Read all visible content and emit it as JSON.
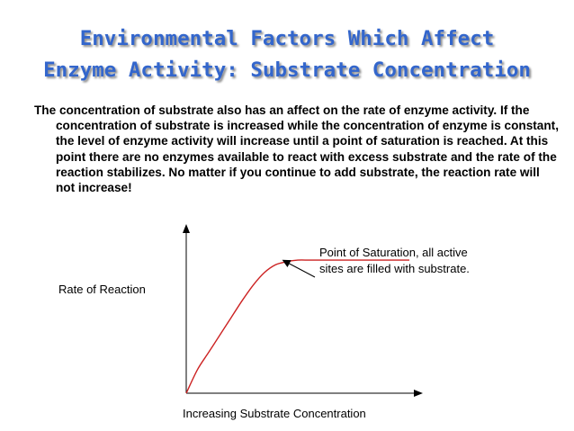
{
  "slide": {
    "title_line1": "Environmental Factors Which Affect",
    "title_line2": "Enzyme Activity:  Substrate Concentration",
    "body": "The concentration of substrate also has an affect on the rate of enzyme activity.  If the concentration of substrate is increased while the concentration of enzyme is constant, the level of enzyme activity will increase until a point of saturation is reached.  At this point there are no enzymes available to react with excess substrate and the rate of the reaction stabilizes.  No matter if you continue to add substrate, the reaction rate will not increase!",
    "accent_color": "#3366cc",
    "curve_color": "#cc2222"
  },
  "chart_data": {
    "type": "line",
    "title": "",
    "xlabel": "Increasing Substrate Concentration",
    "ylabel": "Rate of Reaction",
    "xlim": [
      0,
      100
    ],
    "ylim": [
      0,
      100
    ],
    "grid": false,
    "legend": "none",
    "series": [
      {
        "x": [
          0,
          5,
          10,
          15,
          20,
          25,
          30,
          35,
          40,
          45,
          50,
          55,
          60,
          70,
          80,
          90,
          100
        ],
        "values": [
          0,
          15,
          26,
          37,
          48,
          59,
          69,
          77,
          82,
          84,
          85,
          85,
          85,
          85,
          85,
          85,
          85
        ]
      }
    ],
    "annotation": {
      "text_line1": "Point of Saturation, all active",
      "text_line2": "sites are filled with substrate.",
      "point_x": 43,
      "point_y": 84
    }
  }
}
